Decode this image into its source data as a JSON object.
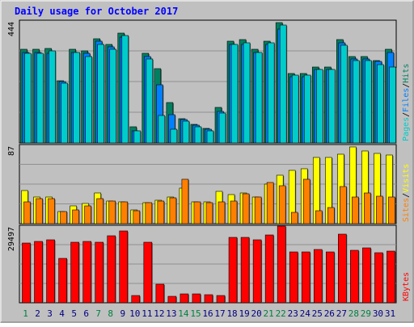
{
  "title": "Daily usage for October 2017",
  "colors": {
    "background": "#c0c0c0",
    "title": "#0000ff",
    "pages": "#00cccc",
    "files": "#0080ff",
    "hits": "#008060",
    "visits": "#ffff00",
    "sites": "#ff8000",
    "kbytes": "#ff0000",
    "day_weekday": "#000080",
    "day_weekend": "#008040"
  },
  "chart_data": [
    {
      "type": "bar",
      "panel": "hits-files-pages",
      "ymax_label": "444",
      "ylim": [
        0,
        444
      ],
      "legend_parts": [
        "Pages",
        "Files",
        "Hits"
      ],
      "legend_separator": "/",
      "categories": [
        "1",
        "2",
        "3",
        "4",
        "5",
        "6",
        "7",
        "8",
        "9",
        "10",
        "11",
        "12",
        "13",
        "14",
        "15",
        "16",
        "17",
        "18",
        "19",
        "20",
        "21",
        "22",
        "23",
        "24",
        "25",
        "26",
        "27",
        "28",
        "29",
        "30",
        "31"
      ],
      "series": [
        {
          "name": "Hits",
          "values": [
            345,
            345,
            350,
            230,
            345,
            340,
            385,
            365,
            405,
            60,
            330,
            275,
            150,
            90,
            70,
            55,
            130,
            375,
            380,
            345,
            375,
            445,
            255,
            255,
            280,
            280,
            380,
            320,
            320,
            305,
            345
          ]
        },
        {
          "name": "Files",
          "values": [
            335,
            335,
            330,
            225,
            335,
            330,
            375,
            355,
            390,
            45,
            320,
            215,
            105,
            85,
            65,
            50,
            115,
            365,
            365,
            335,
            365,
            420,
            245,
            245,
            270,
            270,
            370,
            310,
            310,
            300,
            335
          ]
        },
        {
          "name": "Pages",
          "values": [
            330,
            330,
            340,
            220,
            335,
            320,
            365,
            345,
            395,
            45,
            310,
            100,
            50,
            80,
            60,
            45,
            110,
            365,
            370,
            335,
            370,
            435,
            250,
            250,
            270,
            270,
            360,
            305,
            305,
            290,
            280
          ]
        }
      ]
    },
    {
      "type": "bar",
      "panel": "visits-sites",
      "ymax_label": "87",
      "ylim": [
        0,
        87
      ],
      "legend_parts": [
        "Sites",
        "Visits"
      ],
      "legend_separator": "/",
      "categories": [
        "1",
        "2",
        "3",
        "4",
        "5",
        "6",
        "7",
        "8",
        "9",
        "10",
        "11",
        "12",
        "13",
        "14",
        "15",
        "16",
        "17",
        "18",
        "19",
        "20",
        "21",
        "22",
        "23",
        "24",
        "25",
        "26",
        "27",
        "28",
        "29",
        "30",
        "31"
      ],
      "series": [
        {
          "name": "Visits",
          "values": [
            38,
            30,
            30,
            14,
            20,
            23,
            35,
            26,
            25,
            16,
            24,
            27,
            30,
            40,
            25,
            25,
            37,
            33,
            35,
            30,
            45,
            55,
            60,
            62,
            75,
            75,
            79,
            87,
            82,
            80,
            78
          ]
        },
        {
          "name": "Sites",
          "values": [
            25,
            28,
            28,
            14,
            16,
            20,
            28,
            26,
            25,
            15,
            24,
            26,
            29,
            50,
            25,
            24,
            25,
            26,
            34,
            30,
            47,
            43,
            13,
            50,
            15,
            18,
            42,
            30,
            35,
            31,
            30
          ]
        }
      ]
    },
    {
      "type": "bar",
      "panel": "kbytes",
      "ymax_label": "29497",
      "ylim": [
        0,
        29497
      ],
      "legend_parts": [
        "KBytes"
      ],
      "legend_separator": "",
      "categories": [
        "1",
        "2",
        "3",
        "4",
        "5",
        "6",
        "7",
        "8",
        "9",
        "10",
        "11",
        "12",
        "13",
        "14",
        "15",
        "16",
        "17",
        "18",
        "19",
        "20",
        "21",
        "22",
        "23",
        "24",
        "25",
        "26",
        "27",
        "28",
        "29",
        "30",
        "31"
      ],
      "series": [
        {
          "name": "KBytes",
          "values": [
            23400,
            24100,
            24800,
            17300,
            23900,
            24100,
            23700,
            26200,
            28100,
            2700,
            23900,
            7200,
            2400,
            3600,
            3400,
            3200,
            2900,
            25600,
            25600,
            24800,
            26700,
            30000,
            19900,
            20100,
            20800,
            20100,
            27100,
            20500,
            21500,
            19700,
            20300
          ]
        }
      ]
    }
  ]
}
